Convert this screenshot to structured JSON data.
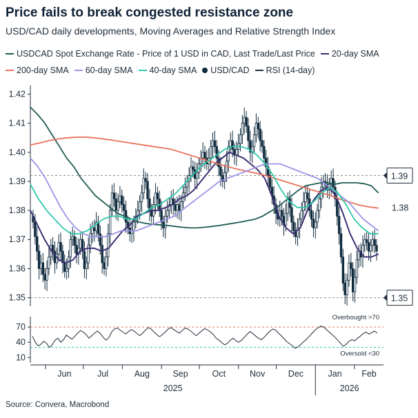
{
  "header": {
    "title": "Price fails to break congested resistance zone",
    "subtitle": "USD/CAD daily developments, Moving Averages and Relative Strength Index"
  },
  "legend": [
    {
      "label": "USDCAD Spot Exchange Rate - Price of 1 USD in CAD, Last Trade/Last Price",
      "color": "#1d5a52",
      "kind": "line"
    },
    {
      "label": "20-day SMA",
      "color": "#3d2f75",
      "kind": "line"
    },
    {
      "label": "200-day SMA",
      "color": "#e8705c",
      "kind": "line"
    },
    {
      "label": "60-day SMA",
      "color": "#9b93e6",
      "kind": "line"
    },
    {
      "label": "40-day SMA",
      "color": "#2dc7a9",
      "kind": "line"
    },
    {
      "label": "USD/CAD",
      "color": "#0f2a3d",
      "kind": "candle"
    },
    {
      "label": "RSI (14-day)",
      "color": "#1e2b38",
      "kind": "line"
    }
  ],
  "source": "Source: Convera, Macrobond",
  "chart_data": [
    {
      "type": "line",
      "panel": "price",
      "x_labels": [
        "Jun",
        "Jul",
        "Aug",
        "Sep",
        "Oct",
        "Nov",
        "Dec",
        "Jan",
        "Feb"
      ],
      "year_labels": [
        "2025",
        "2026"
      ],
      "y_ticks": [
        "1.42",
        "1.41",
        "1.40",
        "1.39",
        "1.38",
        "1.37",
        "1.36",
        "1.35"
      ],
      "ylim": [
        1.348,
        1.422
      ],
      "x_range": [
        "2025-05-20",
        "2026-02-24"
      ],
      "reference_lines": [
        {
          "value": 1.392,
          "label": "1.39"
        },
        {
          "value": 1.35,
          "label": "1.35"
        }
      ],
      "annotations": [
        {
          "text": "1.38",
          "value": 1.3808,
          "color": "#e8705c"
        }
      ],
      "candles_close": [
        1.376,
        1.371,
        1.366,
        1.36,
        1.362,
        1.358,
        1.356,
        1.36,
        1.364,
        1.368,
        1.366,
        1.362,
        1.365,
        1.369,
        1.366,
        1.362,
        1.359,
        1.36,
        1.364,
        1.37,
        1.371,
        1.368,
        1.365,
        1.367,
        1.37,
        1.366,
        1.36,
        1.362,
        1.368,
        1.372,
        1.374,
        1.373,
        1.376,
        1.372,
        1.368,
        1.362,
        1.36,
        1.364,
        1.372,
        1.38,
        1.386,
        1.384,
        1.38,
        1.383,
        1.385,
        1.382,
        1.38,
        1.376,
        1.374,
        1.372,
        1.373,
        1.376,
        1.378,
        1.38,
        1.383,
        1.386,
        1.391,
        1.39,
        1.384,
        1.38,
        1.378,
        1.382,
        1.386,
        1.384,
        1.38,
        1.376,
        1.374,
        1.378,
        1.38,
        1.382,
        1.384,
        1.382,
        1.38,
        1.382,
        1.38,
        1.383,
        1.386,
        1.388,
        1.39,
        1.392,
        1.395,
        1.394,
        1.391,
        1.393,
        1.396,
        1.398,
        1.4,
        1.398,
        1.396,
        1.398,
        1.402,
        1.404,
        1.402,
        1.398,
        1.395,
        1.392,
        1.39,
        1.393,
        1.397,
        1.402,
        1.404,
        1.401,
        1.399,
        1.401,
        1.403,
        1.406,
        1.41,
        1.412,
        1.409,
        1.404,
        1.4,
        1.402,
        1.406,
        1.41,
        1.408,
        1.404,
        1.402,
        1.398,
        1.395,
        1.392,
        1.388,
        1.385,
        1.382,
        1.379,
        1.377,
        1.38,
        1.378,
        1.375,
        1.379,
        1.384,
        1.381,
        1.376,
        1.373,
        1.371,
        1.374,
        1.377,
        1.38,
        1.383,
        1.386,
        1.384,
        1.38,
        1.377,
        1.374,
        1.376,
        1.38,
        1.384,
        1.388,
        1.39,
        1.389,
        1.387,
        1.389,
        1.391,
        1.388,
        1.384,
        1.378,
        1.372,
        1.364,
        1.355,
        1.351,
        1.356,
        1.362,
        1.36,
        1.352,
        1.357,
        1.363,
        1.366,
        1.364,
        1.368,
        1.37,
        1.369,
        1.366,
        1.368,
        1.37,
        1.368,
        1.366
      ],
      "series": [
        {
          "name": "USDCAD Spot Exchange Rate - Price of 1 USD in CAD, Last Trade/Last Price",
          "values": [
            1.4155,
            1.413,
            1.41,
            1.406,
            1.402,
            1.398,
            1.395,
            1.391,
            1.388,
            1.385,
            1.383,
            1.381,
            1.379,
            1.378,
            1.377,
            1.376,
            1.3755,
            1.3752,
            1.375,
            1.3748,
            1.3745,
            1.3742,
            1.374,
            1.374,
            1.3742,
            1.3745,
            1.3748,
            1.3752,
            1.3756,
            1.376,
            1.3765,
            1.377,
            1.378,
            1.3795,
            1.381,
            1.383,
            1.385,
            1.387,
            1.3885,
            1.389,
            1.3895,
            1.3895,
            1.389,
            1.3895,
            1.3895,
            1.3895,
            1.3892,
            1.3885,
            1.386
          ]
        },
        {
          "name": "20-day SMA",
          "values": [
            1.38,
            1.375,
            1.37,
            1.366,
            1.363,
            1.362,
            1.363,
            1.366,
            1.367,
            1.367,
            1.366,
            1.367,
            1.37,
            1.373,
            1.375,
            1.378,
            1.379,
            1.38,
            1.38,
            1.381,
            1.382,
            1.384,
            1.385,
            1.387,
            1.39,
            1.393,
            1.396,
            1.398,
            1.4,
            1.399,
            1.398,
            1.396,
            1.394,
            1.391,
            1.385,
            1.378,
            1.374,
            1.372,
            1.374,
            1.38,
            1.384,
            1.387,
            1.388,
            1.385,
            1.379,
            1.372,
            1.367,
            1.364,
            1.364,
            1.365
          ]
        },
        {
          "name": "200-day SMA",
          "values": [
            1.4025,
            1.4032,
            1.404,
            1.4046,
            1.405,
            1.4052,
            1.4052,
            1.4049,
            1.4045,
            1.404,
            1.4035,
            1.403,
            1.4025,
            1.402,
            1.4015,
            1.401,
            1.4,
            1.399,
            1.398,
            1.397,
            1.396,
            1.395,
            1.3942,
            1.3935,
            1.3928,
            1.392,
            1.391,
            1.39,
            1.389,
            1.388,
            1.387,
            1.386,
            1.385,
            1.3838,
            1.3828,
            1.3818,
            1.3812,
            1.3808
          ]
        },
        {
          "name": "60-day SMA",
          "values": [
            1.398,
            1.395,
            1.391,
            1.386,
            1.381,
            1.377,
            1.374,
            1.372,
            1.371,
            1.371,
            1.371,
            1.372,
            1.373,
            1.373,
            1.373,
            1.374,
            1.375,
            1.376,
            1.377,
            1.378,
            1.38,
            1.382,
            1.384,
            1.386,
            1.388,
            1.39,
            1.391,
            1.392,
            1.393,
            1.394,
            1.395,
            1.396,
            1.396,
            1.396,
            1.395,
            1.394,
            1.393,
            1.392,
            1.391,
            1.389,
            1.387,
            1.385,
            1.383,
            1.38,
            1.377,
            1.375,
            1.373
          ]
        },
        {
          "name": "40-day SMA",
          "values": [
            1.389,
            1.384,
            1.38,
            1.377,
            1.374,
            1.372,
            1.372,
            1.373,
            1.375,
            1.377,
            1.378,
            1.378,
            1.377,
            1.377,
            1.379,
            1.381,
            1.382,
            1.384,
            1.386,
            1.389,
            1.392,
            1.395,
            1.397,
            1.399,
            1.401,
            1.402,
            1.402,
            1.401,
            1.399,
            1.396,
            1.392,
            1.387,
            1.383,
            1.381,
            1.381,
            1.383,
            1.386,
            1.388,
            1.386,
            1.382,
            1.377,
            1.374,
            1.372,
            1.372
          ]
        }
      ]
    },
    {
      "type": "line",
      "panel": "rsi",
      "y_ticks": [
        "70",
        "40",
        "10"
      ],
      "ylim": [
        5,
        85
      ],
      "reference_lines": [
        {
          "value": 70,
          "label": "Overbought >70"
        },
        {
          "value": 30,
          "label": "Oversold <30"
        }
      ],
      "series": [
        {
          "name": "RSI (14-day)",
          "values": [
            52,
            40,
            33,
            36,
            42,
            38,
            30,
            35,
            44,
            48,
            40,
            45,
            54,
            50,
            46,
            52,
            58,
            63,
            60,
            55,
            48,
            53,
            58,
            62,
            57,
            50,
            44,
            49,
            60,
            66,
            68,
            64,
            60,
            56,
            61,
            65,
            62,
            57,
            53,
            58,
            64,
            69,
            66,
            60,
            55,
            51,
            55,
            60,
            66,
            69,
            65,
            61,
            58,
            63,
            68,
            66,
            62,
            57,
            53,
            58,
            63,
            67,
            64,
            60,
            55,
            48,
            44,
            39,
            35,
            38,
            44,
            48,
            43,
            40,
            44,
            50,
            56,
            61,
            57,
            52,
            48,
            45,
            50,
            56,
            62,
            66,
            64,
            58,
            53,
            47,
            41,
            37,
            33,
            28,
            31,
            36,
            41,
            46,
            52,
            58,
            64,
            68,
            72,
            70,
            65,
            60,
            55,
            50,
            44,
            38,
            32,
            36,
            42,
            45,
            43,
            48,
            52,
            57,
            60,
            56,
            59,
            62,
            58
          ]
        }
      ]
    }
  ]
}
